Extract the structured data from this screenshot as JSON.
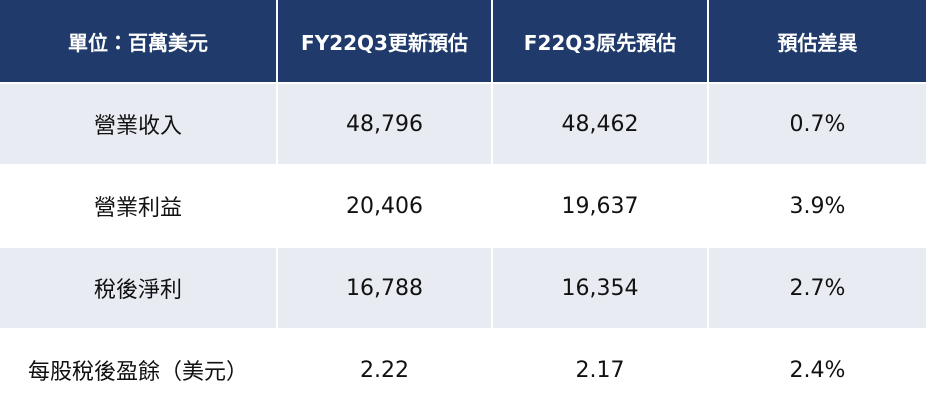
{
  "table": {
    "header": [
      "單位：百萬美元",
      "FY22Q3更新預估",
      "F22Q3原先預估",
      "預估差異"
    ],
    "rows": [
      [
        "營業收入",
        "48,796",
        "48,462",
        "0.7%"
      ],
      [
        "營業利益",
        "20,406",
        "19,637",
        "3.9%"
      ],
      [
        "稅後淨利",
        "16,788",
        "16,354",
        "2.7%"
      ],
      [
        "每股稅後盈餘（美元）",
        "2.22",
        "2.17",
        "2.4%"
      ]
    ]
  }
}
